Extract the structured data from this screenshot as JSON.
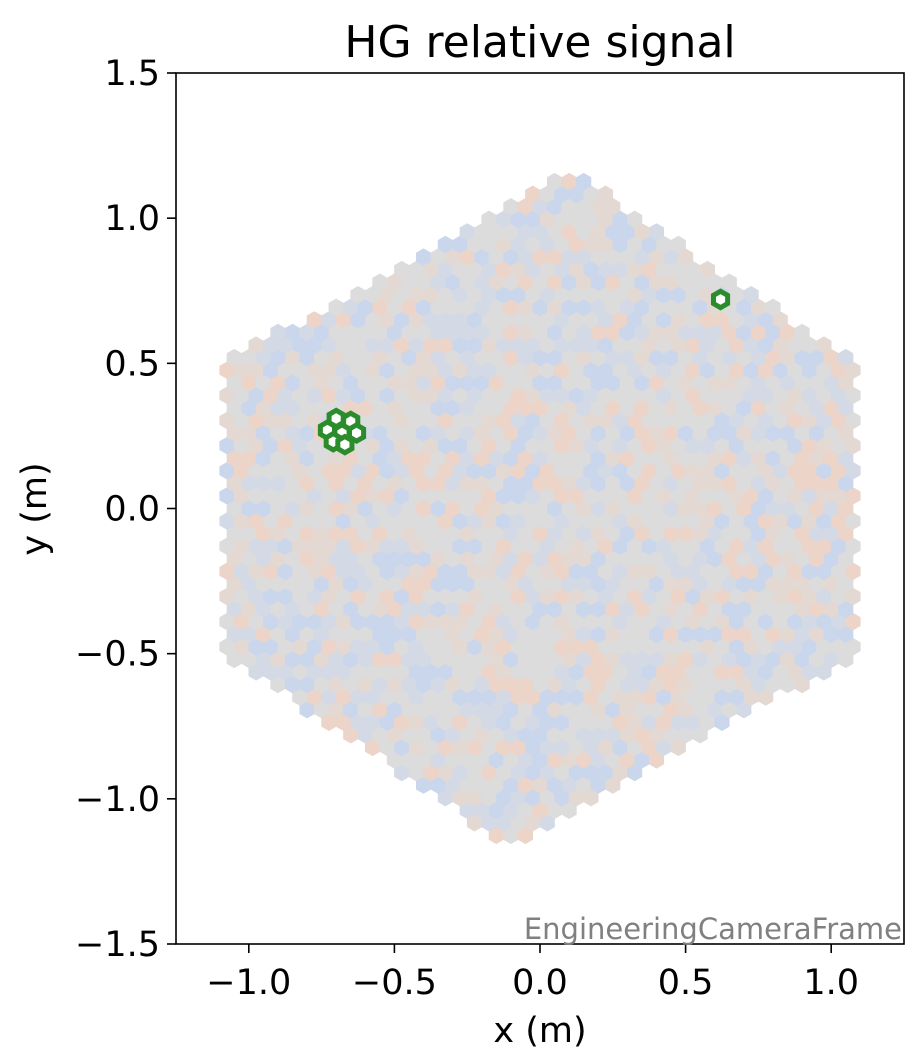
{
  "chart_data": {
    "type": "heatmap",
    "title": "HG relative signal",
    "xlabel": "x  (m)",
    "ylabel": "y  (m)",
    "xlim": [
      -1.25,
      1.25
    ],
    "ylim": [
      -1.5,
      1.5
    ],
    "xticks": [
      -1.0,
      -0.5,
      0.0,
      0.5,
      1.0
    ],
    "xtick_labels": [
      "−1.0",
      "−0.5",
      "0.0",
      "0.5",
      "1.0"
    ],
    "yticks": [
      -1.5,
      -1.0,
      -0.5,
      0.0,
      0.5,
      1.0,
      1.5
    ],
    "ytick_labels": [
      "−1.5",
      "−1.0",
      "−0.5",
      "0.0",
      "0.5",
      "1.0",
      "1.5"
    ],
    "annotation": "EngineeringCameraFrame",
    "camera": {
      "shape": "hexagon",
      "center": [
        0.0,
        0.0
      ],
      "vertex_top": [
        0.1,
        1.17
      ],
      "vertex_bottom": [
        -0.1,
        -1.17
      ],
      "vertex_right_upper": [
        1.09,
        0.5
      ],
      "vertex_right_lower": [
        1.09,
        -0.5
      ],
      "vertex_left_upper": [
        -1.09,
        0.5
      ],
      "vertex_left_lower": [
        -1.09,
        -0.5
      ],
      "pixel_spacing": 0.05,
      "signal_distribution": "near-uniform relative signal with small random deviations (blue below, red above)"
    },
    "colors": {
      "neutral": "#dcdcdc",
      "low": "#c9d6ec",
      "high": "#ecd4c8",
      "highlight": "#2a8c2a"
    },
    "highlighted_pixels": [
      {
        "x": -0.7,
        "y": 0.31
      },
      {
        "x": -0.65,
        "y": 0.3
      },
      {
        "x": -0.73,
        "y": 0.27
      },
      {
        "x": -0.68,
        "y": 0.26
      },
      {
        "x": -0.63,
        "y": 0.26
      },
      {
        "x": -0.71,
        "y": 0.23
      },
      {
        "x": -0.67,
        "y": 0.22
      },
      {
        "x": 0.62,
        "y": 0.72
      }
    ]
  }
}
